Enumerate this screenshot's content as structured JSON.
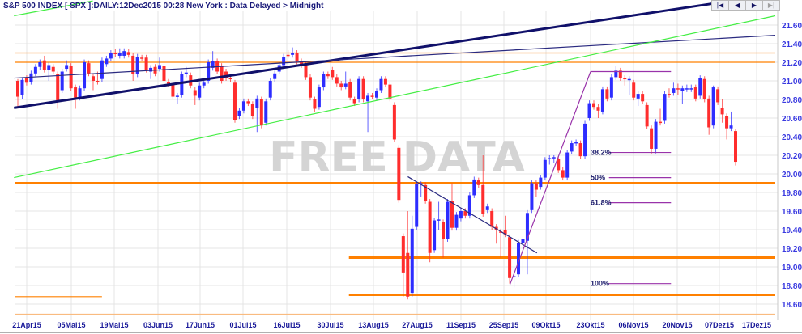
{
  "header": {
    "title": "S&P 500 INDEX [ SPX ]:DAILY:12Dec2015 00:28 New York : Data Delayed > Midnight"
  },
  "nav": {
    "first": "|◀",
    "prev": "◀",
    "next": "▶",
    "last": "▶|"
  },
  "watermark": "FREE DATA",
  "colors": {
    "up": "#2d2dff",
    "down": "#ff2d2d",
    "support": "#ff8000",
    "support_light": "#f9bb80",
    "trend_thick": "#10106a",
    "trend_thin": "#2a2a80",
    "channel": "#44ee44",
    "fib": "#9933aa",
    "grid": "#e4e4e4"
  },
  "chart_data": {
    "type": "candlestick",
    "title": "S&P 500 INDEX [ SPX ]:DAILY",
    "ylim": [
      18.5,
      21.7
    ],
    "y_ticks": [
      "21.60",
      "21.40",
      "21.20",
      "21.00",
      "20.80",
      "20.60",
      "20.40",
      "20.20",
      "20.00",
      "19.80",
      "19.60",
      "19.40",
      "19.20",
      "19.00",
      "18.80",
      "18.60"
    ],
    "x_ticks": [
      "21Apr15",
      "05Mai15",
      "19Mai15",
      "03Jun15",
      "17Jun15",
      "01Jul15",
      "16Jul15",
      "30Jul15",
      "13Aug15",
      "27Aug15",
      "11Sep15",
      "25Sep15",
      "09Okt15",
      "23Okt15",
      "06Nov15",
      "20Nov15",
      "07Dez15",
      "17Dez15"
    ],
    "grid": true,
    "ohlc_fields": [
      "open",
      "high",
      "low",
      "close"
    ],
    "ohlc": [
      [
        21.0,
        21.02,
        20.72,
        20.83
      ],
      [
        20.85,
        21.04,
        20.8,
        21.01
      ],
      [
        21.03,
        21.06,
        20.95,
        20.98
      ],
      [
        20.99,
        21.11,
        20.96,
        21.08
      ],
      [
        21.08,
        21.18,
        21.05,
        21.15
      ],
      [
        21.15,
        21.23,
        21.12,
        21.2
      ],
      [
        21.22,
        21.27,
        21.09,
        21.12
      ],
      [
        21.12,
        21.2,
        21.0,
        21.17
      ],
      [
        21.15,
        21.18,
        21.07,
        21.1
      ],
      [
        21.07,
        21.1,
        20.7,
        20.79
      ],
      [
        20.9,
        21.13,
        20.87,
        21.1
      ],
      [
        21.13,
        21.22,
        21.1,
        21.17
      ],
      [
        21.16,
        21.19,
        20.89,
        20.92
      ],
      [
        20.93,
        20.96,
        20.7,
        20.82
      ],
      [
        20.82,
        20.95,
        20.79,
        20.92
      ],
      [
        20.92,
        21.23,
        20.89,
        21.2
      ],
      [
        21.19,
        21.22,
        21.05,
        21.08
      ],
      [
        21.05,
        21.08,
        20.9,
        21.0
      ],
      [
        21.0,
        21.1,
        20.96,
        20.99
      ],
      [
        21.02,
        21.25,
        20.99,
        21.22
      ],
      [
        21.18,
        21.27,
        21.15,
        21.24
      ],
      [
        21.24,
        21.33,
        21.21,
        21.3
      ],
      [
        21.3,
        21.34,
        21.26,
        21.29
      ],
      [
        21.27,
        21.35,
        21.24,
        21.3
      ],
      [
        21.27,
        21.35,
        21.24,
        21.32
      ],
      [
        21.31,
        21.34,
        21.25,
        21.28
      ],
      [
        21.27,
        21.3,
        21.0,
        21.07
      ],
      [
        21.07,
        21.29,
        21.04,
        21.26
      ],
      [
        21.25,
        21.28,
        21.21,
        21.24
      ],
      [
        21.25,
        21.28,
        21.09,
        21.12
      ],
      [
        21.1,
        21.17,
        21.02,
        21.14
      ],
      [
        21.15,
        21.18,
        21.05,
        21.08
      ],
      [
        21.13,
        21.25,
        21.1,
        21.17
      ],
      [
        21.16,
        21.19,
        20.97,
        21.0
      ],
      [
        20.99,
        21.02,
        20.94,
        20.97
      ],
      [
        20.96,
        20.99,
        20.8,
        20.83
      ],
      [
        20.83,
        20.87,
        20.75,
        20.84
      ],
      [
        20.85,
        21.1,
        20.82,
        21.07
      ],
      [
        21.07,
        21.15,
        21.04,
        21.09
      ],
      [
        21.06,
        21.09,
        20.92,
        20.95
      ],
      [
        20.9,
        20.93,
        20.74,
        20.84
      ],
      [
        20.82,
        20.98,
        20.79,
        20.95
      ],
      [
        20.95,
        21.01,
        20.92,
        20.98
      ],
      [
        21.0,
        21.23,
        20.97,
        21.2
      ],
      [
        21.14,
        21.32,
        21.11,
        21.21
      ],
      [
        21.21,
        21.24,
        21.07,
        21.1
      ],
      [
        21.16,
        21.19,
        20.97,
        21.0
      ],
      [
        21.1,
        21.13,
        21.0,
        21.03
      ],
      [
        21.03,
        21.06,
        20.99,
        21.02
      ],
      [
        20.98,
        21.01,
        20.55,
        20.58
      ],
      [
        20.62,
        20.71,
        20.59,
        20.68
      ],
      [
        20.68,
        20.81,
        20.65,
        20.78
      ],
      [
        20.78,
        20.81,
        20.73,
        20.76
      ],
      [
        20.75,
        20.78,
        20.59,
        20.62
      ],
      [
        20.71,
        20.84,
        20.45,
        20.81
      ],
      [
        20.8,
        20.83,
        20.49,
        20.52
      ],
      [
        20.55,
        20.81,
        20.52,
        20.78
      ],
      [
        20.82,
        21.03,
        20.79,
        21.0
      ],
      [
        21.02,
        21.11,
        20.99,
        21.08
      ],
      [
        21.1,
        21.2,
        21.07,
        21.17
      ],
      [
        21.17,
        21.29,
        21.14,
        21.26
      ],
      [
        21.28,
        21.33,
        21.24,
        21.27
      ],
      [
        21.28,
        21.36,
        21.25,
        21.3
      ],
      [
        21.3,
        21.33,
        21.18,
        21.21
      ],
      [
        21.21,
        21.24,
        21.14,
        21.17
      ],
      [
        21.18,
        21.21,
        21.01,
        21.04
      ],
      [
        21.04,
        21.07,
        20.79,
        20.82
      ],
      [
        20.8,
        20.83,
        20.67,
        20.7
      ],
      [
        20.72,
        20.96,
        20.69,
        20.93
      ],
      [
        20.93,
        21.1,
        20.9,
        21.07
      ],
      [
        21.07,
        21.1,
        21.02,
        21.05
      ],
      [
        21.12,
        21.15,
        21.01,
        21.04
      ],
      [
        21.04,
        21.07,
        20.94,
        20.97
      ],
      [
        20.97,
        21.0,
        20.9,
        20.93
      ],
      [
        20.94,
        21.1,
        20.91,
        20.97
      ],
      [
        20.99,
        21.02,
        20.79,
        20.82
      ],
      [
        20.8,
        20.83,
        20.73,
        20.76
      ],
      [
        20.8,
        21.05,
        20.77,
        21.02
      ],
      [
        21.02,
        21.05,
        20.77,
        20.8
      ],
      [
        20.78,
        20.87,
        20.45,
        20.84
      ],
      [
        20.84,
        20.87,
        20.8,
        20.83
      ],
      [
        20.82,
        20.92,
        20.79,
        20.89
      ],
      [
        20.9,
        21.05,
        20.87,
        21.02
      ],
      [
        21.02,
        21.05,
        20.93,
        20.96
      ],
      [
        20.96,
        20.99,
        20.78,
        20.81
      ],
      [
        20.74,
        20.77,
        20.34,
        20.37
      ],
      [
        20.28,
        20.31,
        19.69,
        19.72
      ],
      [
        19.33,
        19.36,
        18.68,
        18.94
      ],
      [
        19.15,
        19.6,
        18.65,
        18.68
      ],
      [
        18.72,
        19.55,
        18.68,
        19.41
      ],
      [
        19.43,
        19.92,
        19.4,
        19.89
      ],
      [
        19.9,
        19.92,
        19.75,
        19.9
      ],
      [
        19.88,
        19.91,
        19.68,
        19.71
      ],
      [
        19.7,
        19.73,
        19.05,
        19.15
      ],
      [
        19.18,
        19.53,
        19.15,
        19.5
      ],
      [
        19.51,
        19.7,
        19.4,
        19.51
      ],
      [
        19.48,
        19.51,
        19.1,
        19.3
      ],
      [
        19.3,
        19.73,
        19.27,
        19.7
      ],
      [
        19.71,
        19.9,
        19.39,
        19.42
      ],
      [
        19.42,
        19.59,
        19.39,
        19.56
      ],
      [
        19.52,
        19.63,
        19.49,
        19.6
      ],
      [
        19.6,
        19.63,
        19.52,
        19.55
      ],
      [
        19.55,
        19.8,
        19.52,
        19.77
      ],
      [
        19.77,
        19.97,
        19.74,
        19.94
      ],
      [
        19.93,
        19.96,
        19.85,
        19.88
      ],
      [
        19.88,
        20.2,
        19.54,
        19.57
      ],
      [
        19.61,
        19.68,
        19.58,
        19.65
      ],
      [
        19.6,
        19.63,
        19.4,
        19.43
      ],
      [
        19.43,
        19.46,
        19.25,
        19.4
      ],
      [
        19.38,
        19.41,
        19.1,
        19.37
      ],
      [
        19.4,
        19.55,
        19.32,
        19.35
      ],
      [
        19.32,
        19.35,
        18.82,
        18.88
      ],
      [
        18.9,
        19.0,
        18.78,
        18.9
      ],
      [
        18.92,
        19.29,
        18.89,
        19.26
      ],
      [
        19.26,
        19.33,
        18.95,
        19.3
      ],
      [
        19.28,
        19.61,
        18.92,
        19.58
      ],
      [
        19.61,
        19.93,
        19.58,
        19.9
      ],
      [
        19.9,
        19.93,
        19.75,
        19.83
      ],
      [
        19.86,
        19.99,
        19.83,
        19.96
      ],
      [
        19.96,
        20.18,
        19.93,
        20.15
      ],
      [
        20.16,
        20.2,
        20.1,
        20.17
      ],
      [
        20.17,
        20.2,
        20.12,
        20.18
      ],
      [
        20.16,
        20.19,
        20.01,
        20.04
      ],
      [
        20.04,
        20.07,
        19.93,
        19.96
      ],
      [
        19.96,
        20.26,
        19.93,
        20.23
      ],
      [
        20.24,
        20.36,
        20.21,
        20.33
      ],
      [
        20.33,
        20.37,
        20.3,
        20.34
      ],
      [
        20.33,
        20.36,
        20.16,
        20.19
      ],
      [
        20.19,
        20.57,
        20.16,
        20.54
      ],
      [
        20.6,
        20.79,
        20.57,
        20.76
      ],
      [
        20.76,
        20.79,
        20.69,
        20.72
      ],
      [
        20.72,
        20.75,
        20.6,
        20.68
      ],
      [
        20.67,
        20.94,
        20.64,
        20.91
      ],
      [
        20.91,
        20.94,
        20.78,
        20.81
      ],
      [
        20.82,
        21.07,
        20.79,
        21.04
      ],
      [
        21.04,
        21.16,
        21.01,
        21.11
      ],
      [
        21.11,
        21.14,
        21.0,
        21.03
      ],
      [
        21.03,
        21.06,
        20.95,
        21.02
      ],
      [
        21.02,
        21.05,
        20.85,
        21.02
      ],
      [
        20.98,
        21.01,
        20.79,
        20.82
      ],
      [
        20.81,
        20.89,
        20.73,
        20.86
      ],
      [
        20.86,
        20.89,
        20.75,
        20.78
      ],
      [
        20.74,
        20.77,
        20.48,
        20.51
      ],
      [
        20.49,
        20.52,
        20.21,
        20.27
      ],
      [
        20.27,
        20.59,
        20.22,
        20.56
      ],
      [
        20.56,
        20.7,
        20.52,
        20.55
      ],
      [
        20.57,
        20.89,
        20.54,
        20.86
      ],
      [
        20.86,
        20.92,
        20.82,
        20.85
      ],
      [
        20.87,
        20.98,
        20.84,
        20.92
      ],
      [
        20.92,
        20.97,
        20.85,
        20.91
      ],
      [
        20.89,
        20.95,
        20.75,
        20.92
      ],
      [
        20.92,
        20.96,
        20.88,
        20.92
      ],
      [
        20.92,
        20.96,
        20.88,
        20.92
      ],
      [
        20.93,
        20.96,
        20.78,
        20.81
      ],
      [
        20.84,
        21.06,
        20.81,
        21.03
      ],
      [
        21.02,
        21.05,
        20.77,
        20.8
      ],
      [
        20.81,
        20.84,
        20.42,
        20.5
      ],
      [
        20.52,
        20.95,
        20.49,
        20.93
      ],
      [
        20.91,
        20.94,
        20.74,
        20.77
      ],
      [
        20.71,
        20.8,
        20.55,
        20.64
      ],
      [
        20.62,
        20.65,
        20.37,
        20.49
      ],
      [
        20.49,
        20.67,
        20.46,
        20.52
      ],
      [
        20.46,
        20.48,
        20.09,
        20.13
      ]
    ],
    "horizontal_levels": [
      {
        "price": 21.3,
        "from": "2015-04-17",
        "to": "2015-12-22",
        "style": "support_light"
      },
      {
        "price": 21.2,
        "from": "2015-04-17",
        "to": "2015-12-22",
        "style": "support_thin"
      },
      {
        "price": 19.9,
        "from": "2015-04-17",
        "to": "2015-12-22",
        "style": "support_thick"
      },
      {
        "price": 19.1,
        "from": "2015-08-05",
        "to": "2015-12-22",
        "style": "support_thick"
      },
      {
        "price": 18.7,
        "from": "2015-08-05",
        "to": "2015-12-22",
        "style": "support_thick"
      },
      {
        "price": 18.68,
        "from": "2015-04-17",
        "to": "2015-05-15",
        "style": "support_thin"
      },
      {
        "price": 18.49,
        "from": "2015-04-17",
        "to": "2015-12-22",
        "style": "support_light"
      }
    ],
    "trendlines": [
      {
        "from": [
          "2015-04-17",
          20.71
        ],
        "to": [
          "2015-12-04",
          21.83
        ],
        "style": "trend_thick"
      },
      {
        "from": [
          "2015-04-17",
          21.03
        ],
        "to": [
          "2015-12-22",
          21.49
        ],
        "style": "trend_thin"
      },
      {
        "from": [
          "2015-04-17",
          19.96
        ],
        "to": [
          "2015-12-22",
          21.7
        ],
        "style": "channel"
      },
      {
        "from": [
          "2015-04-17",
          21.7
        ],
        "to": [
          "2015-05-12",
          21.86
        ],
        "style": "channel"
      },
      {
        "from": [
          "2015-08-24",
          19.97
        ],
        "to": [
          "2015-10-06",
          19.15
        ],
        "style": "trend_thin"
      },
      {
        "from": [
          "2015-09-27",
          18.81
        ],
        "to": [
          "2015-10-23",
          21.1
        ],
        "style": "fib"
      }
    ],
    "fibonacci": {
      "high": 21.1,
      "low": 18.82,
      "top_from": "2015-10-23",
      "from": "2015-10-29",
      "to": "2015-11-18",
      "levels": [
        {
          "label": "38.2%",
          "price": 20.23
        },
        {
          "label": "50%",
          "price": 19.96
        },
        {
          "label": "61.8%",
          "price": 19.69
        },
        {
          "label": "100%",
          "price": 18.82
        }
      ]
    }
  }
}
